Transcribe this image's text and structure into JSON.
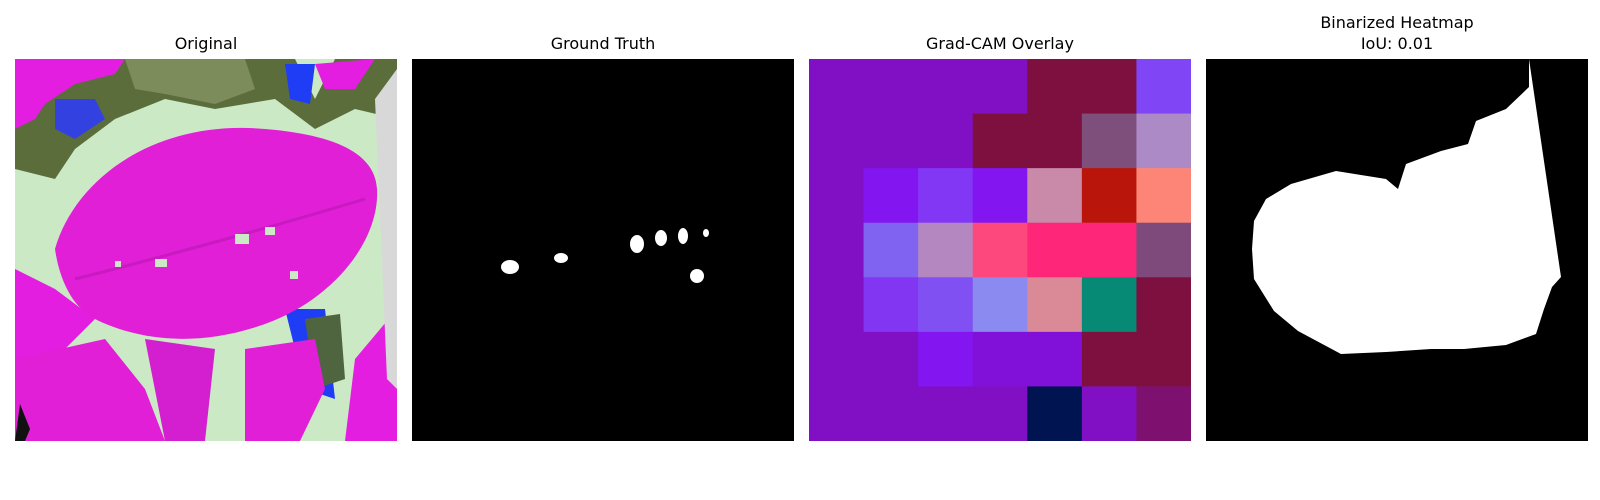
{
  "panels": [
    {
      "title": "Original"
    },
    {
      "title": "Ground Truth"
    },
    {
      "title": "Grad-CAM Overlay"
    },
    {
      "title": "Binarized Heatmap",
      "subtitle": "IoU: 0.01"
    }
  ],
  "chart_data": {
    "type": "heatmap",
    "title": "Grad-CAM Overlay",
    "grid_size": [
      7,
      7
    ],
    "cell_colors": [
      [
        "#8110c4",
        "#8110c4",
        "#8110c4",
        "#8110c4",
        "#7e1040",
        "#7e1040",
        "#8045f5"
      ],
      [
        "#8110c4",
        "#8110c4",
        "#8110c4",
        "#7e1040",
        "#7e1040",
        "#7f4f7c",
        "#ac8ac6"
      ],
      [
        "#8110c4",
        "#8215f0",
        "#8237f5",
        "#8215f0",
        "#c98aaa",
        "#b9150a",
        "#fd8577"
      ],
      [
        "#8110c4",
        "#8163f2",
        "#b587c0",
        "#fd487d",
        "#fd2679",
        "#fd2679",
        "#7e4a7c"
      ],
      [
        "#8110c4",
        "#8236f2",
        "#8150f3",
        "#8a8af0",
        "#d98a96",
        "#068a76",
        "#7e1040"
      ],
      [
        "#8110c4",
        "#8110c4",
        "#8215f0",
        "#8110d8",
        "#8110d8",
        "#7e1040",
        "#7e1040"
      ],
      [
        "#8110c4",
        "#8110c4",
        "#8110c4",
        "#8110c4",
        "#001451",
        "#8110c4",
        "#7e1070"
      ]
    ],
    "iou": 0.01
  }
}
